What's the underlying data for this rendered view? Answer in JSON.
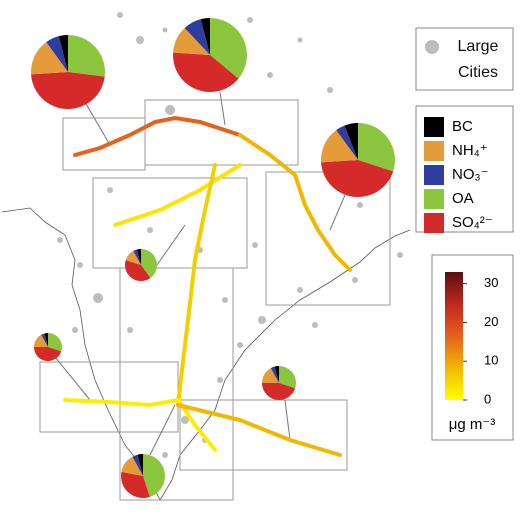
{
  "legend_cities": "Large Cities",
  "species": [
    {
      "label": "BC",
      "color": "#000000"
    },
    {
      "label": "NH₄⁺",
      "color": "#e69b3a"
    },
    {
      "label": "NO₃⁻",
      "color": "#2e3d9e"
    },
    {
      "label": "OA",
      "color": "#8cc63f"
    },
    {
      "label": "SO₄²⁻",
      "color": "#d42a2a"
    }
  ],
  "colorbar": {
    "lim": [
      0,
      33
    ],
    "ticks": [
      0,
      10,
      20,
      30
    ],
    "unit": "μg m⁻³",
    "colors": [
      "#ffff00",
      "#f2b705",
      "#e8601c",
      "#c0281e",
      "#5a0e0e"
    ]
  },
  "pies": [
    {
      "values": [
        4,
        16,
        6,
        27,
        47
      ]
    },
    {
      "values": [
        4,
        12,
        8,
        36,
        40
      ]
    },
    {
      "values": [
        6,
        16,
        4,
        30,
        44
      ]
    },
    {
      "values": [
        4,
        12,
        4,
        40,
        40
      ]
    },
    {
      "values": [
        4,
        17,
        4,
        30,
        45
      ]
    },
    {
      "values": [
        4,
        17,
        4,
        30,
        45
      ]
    },
    {
      "values": [
        4,
        14,
        4,
        45,
        33
      ]
    }
  ]
}
